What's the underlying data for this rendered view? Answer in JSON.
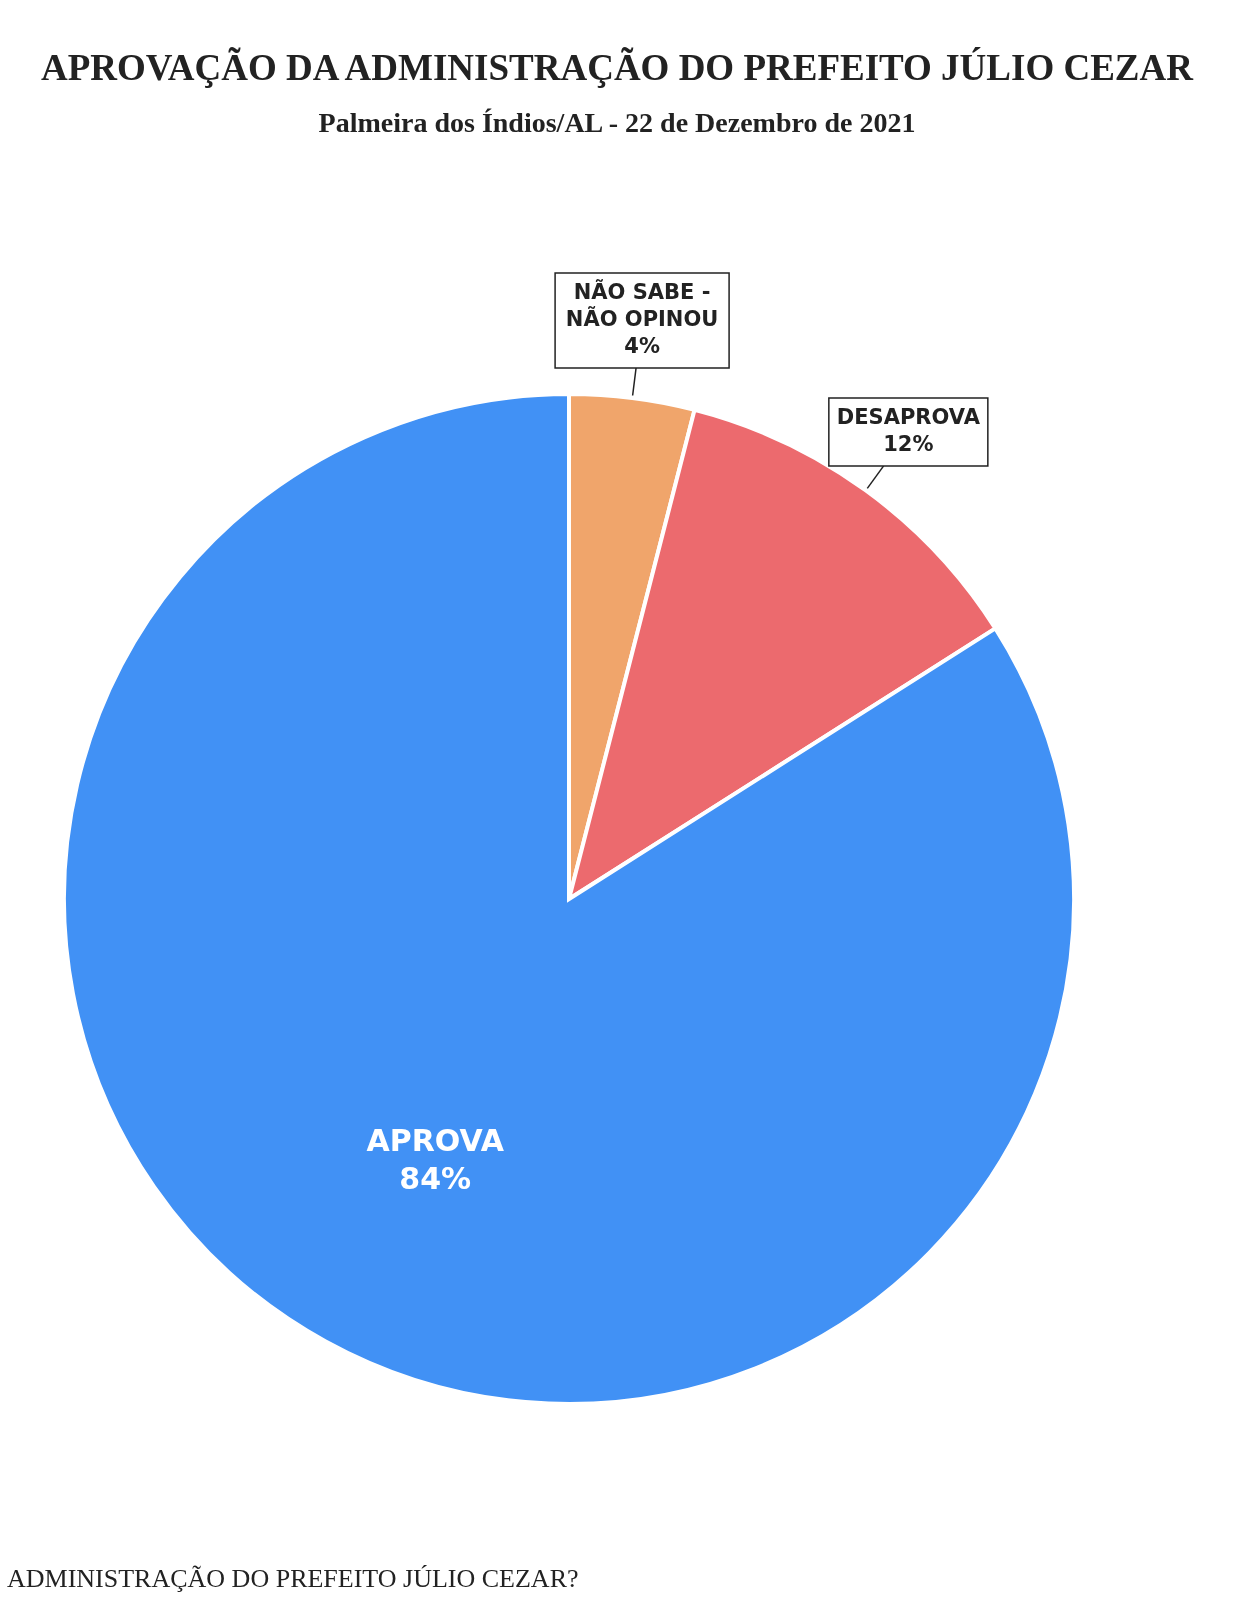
{
  "chart_data": {
    "type": "pie",
    "title": "APROVAÇÃO DA ADMINISTRAÇÃO DO PREFEITO JÚLIO CEZAR",
    "subtitle": "Palmeira dos Índios/AL - 22 de Dezembro de 2021",
    "categories": [
      "NÃO SABE - NÃO OPINOU",
      "DESAPROVA",
      "APROVA"
    ],
    "values": [
      4,
      12,
      84
    ],
    "value_labels": [
      "4%",
      "12%",
      "84%"
    ],
    "colors": [
      "#f0a56b",
      "#ec6a6e",
      "#4191f5"
    ],
    "legend": false,
    "annotations": [
      "ADMINISTRAÇÃO DO PREFEITO JÚLIO CEZAR?"
    ]
  }
}
